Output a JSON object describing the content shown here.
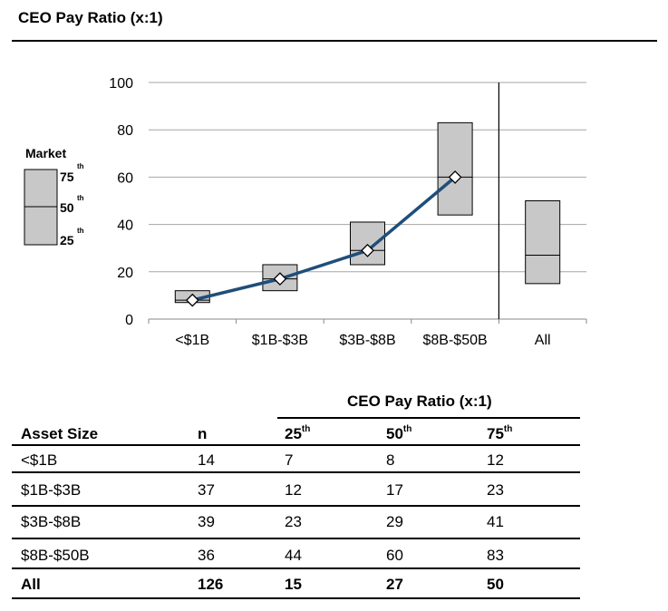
{
  "title": "CEO Pay Ratio (x:1)",
  "legend": {
    "label": "Market",
    "p75": "75",
    "p50": "50",
    "p25": "25",
    "sup": "th"
  },
  "chart_data": {
    "type": "box",
    "categories": [
      "<$1B",
      "$1B-$3B",
      "$3B-$8B",
      "$8B-$50B",
      "All"
    ],
    "series": [
      {
        "name": "25th",
        "values": [
          7,
          12,
          23,
          44,
          15
        ]
      },
      {
        "name": "50th",
        "values": [
          8,
          17,
          29,
          60,
          27
        ]
      },
      {
        "name": "75th",
        "values": [
          12,
          23,
          41,
          83,
          50
        ]
      }
    ],
    "median_line": {
      "categories": [
        "<$1B",
        "$1B-$3B",
        "$3B-$8B",
        "$8B-$50B"
      ],
      "values": [
        8,
        17,
        29,
        60
      ],
      "color": "#1f4e79"
    },
    "ylim": [
      0,
      100
    ],
    "yticks": [
      0,
      20,
      40,
      60,
      80,
      100
    ],
    "grid": true,
    "box_color": "#c8c8c8"
  },
  "table": {
    "group_header": "CEO Pay Ratio (x:1)",
    "headers": {
      "asset": "Asset Size",
      "n": "n",
      "p25": "25",
      "p50": "50",
      "p75": "75",
      "sup": "th"
    },
    "rows": [
      {
        "asset": "<$1B",
        "n": "14",
        "p25": "7",
        "p50": "8",
        "p75": "12"
      },
      {
        "asset": "$1B-$3B",
        "n": "37",
        "p25": "12",
        "p50": "17",
        "p75": "23"
      },
      {
        "asset": "$3B-$8B",
        "n": "39",
        "p25": "23",
        "p50": "29",
        "p75": "41"
      },
      {
        "asset": "$8B-$50B",
        "n": "36",
        "p25": "44",
        "p50": "60",
        "p75": "83"
      }
    ],
    "total": {
      "asset": "All",
      "n": "126",
      "p25": "15",
      "p50": "27",
      "p75": "50"
    }
  }
}
